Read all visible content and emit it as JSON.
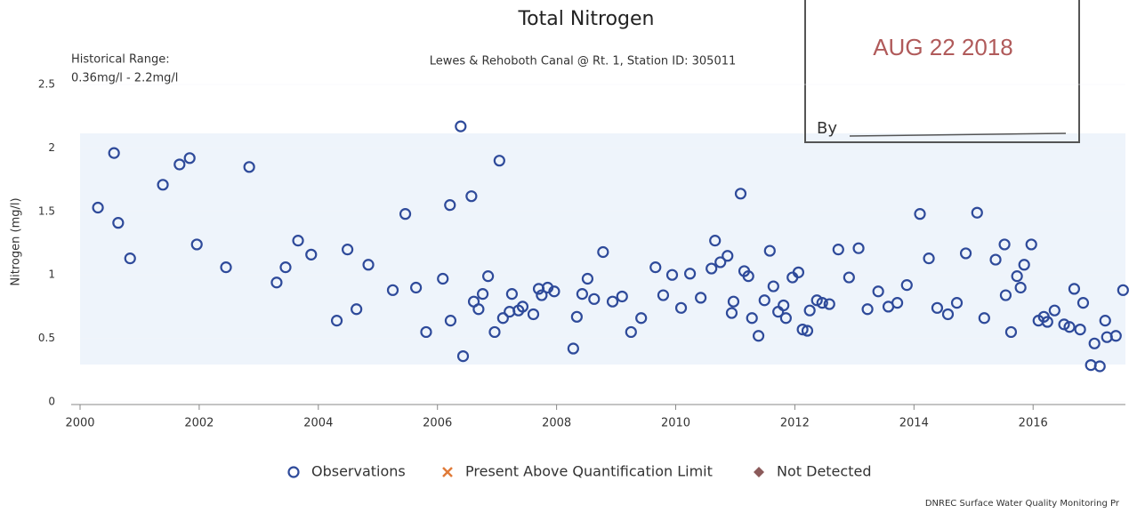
{
  "chart_data": {
    "type": "scatter",
    "title": "Total Nitrogen",
    "subtitle": "Lewes & Rehoboth Canal @ Rt. 1, Station ID: 305011",
    "annotations": [
      "Historical Range:",
      "0.36mg/l - 2.2mg/l"
    ],
    "ylabel": "Nitrogen (mg/l)",
    "footer": "DNREC Surface Water Quality Monitoring Pr",
    "stamp": [
      "AUG 22 2018",
      "By"
    ],
    "xlim": [
      2000,
      2017.55
    ],
    "xticks": [
      2000,
      2002,
      2004,
      2006,
      2008,
      2010,
      2012,
      2014,
      2016
    ],
    "ylim": [
      0,
      2.5
    ],
    "yticks": [
      0,
      0.5,
      1,
      1.5,
      2,
      2.5
    ],
    "legend": "bottom",
    "series": [
      {
        "name": "Observations",
        "color": "#2e4a9a",
        "marker": "circle",
        "x": [
          2000.3,
          2000.57,
          2000.64,
          2000.84,
          2001.39,
          2001.67,
          2001.84,
          2001.96,
          2002.45,
          2002.84,
          2003.3,
          2003.45,
          2003.66,
          2003.88,
          2004.31,
          2004.49,
          2004.64,
          2004.84,
          2005.25,
          2005.46,
          2005.64,
          2005.81,
          2006.09,
          2006.21,
          2006.22,
          2006.39,
          2006.43,
          2006.57,
          2006.61,
          2006.69,
          2006.76,
          2006.85,
          2006.96,
          2007.04,
          2007.1,
          2007.21,
          2007.25,
          2007.36,
          2007.43,
          2007.61,
          2007.7,
          2007.75,
          2007.85,
          2007.96,
          2008.28,
          2008.34,
          2008.43,
          2008.52,
          2008.63,
          2008.78,
          2008.94,
          2009.1,
          2009.25,
          2009.42,
          2009.66,
          2009.79,
          2009.94,
          2010.09,
          2010.24,
          2010.42,
          2010.6,
          2010.66,
          2010.75,
          2010.87,
          2010.94,
          2010.97,
          2011.09,
          2011.15,
          2011.22,
          2011.28,
          2011.39,
          2011.49,
          2011.58,
          2011.64,
          2011.72,
          2011.81,
          2011.85,
          2011.96,
          2012.06,
          2012.13,
          2012.21,
          2012.25,
          2012.37,
          2012.46,
          2012.58,
          2012.73,
          2012.91,
          2013.07,
          2013.22,
          2013.4,
          2013.57,
          2013.72,
          2013.88,
          2014.1,
          2014.25,
          2014.39,
          2014.57,
          2014.72,
          2014.87,
          2015.06,
          2015.18,
          2015.37,
          2015.52,
          2015.54,
          2015.63,
          2015.73,
          2015.79,
          2015.85,
          2015.97,
          2016.09,
          2016.18,
          2016.24,
          2016.36,
          2016.52,
          2016.61,
          2016.69,
          2016.79,
          2016.84,
          2016.97,
          2017.03,
          2017.12,
          2017.21,
          2017.24,
          2017.39,
          2017.51
        ],
        "values": [
          1.53,
          1.96,
          1.41,
          1.13,
          1.71,
          1.87,
          1.92,
          1.24,
          1.06,
          1.85,
          0.94,
          1.06,
          1.27,
          1.16,
          0.64,
          1.2,
          0.73,
          1.08,
          0.88,
          1.48,
          0.9,
          0.55,
          0.97,
          1.55,
          0.64,
          2.17,
          0.36,
          1.62,
          0.79,
          0.73,
          0.85,
          0.99,
          0.55,
          1.9,
          0.66,
          0.71,
          0.85,
          0.72,
          0.75,
          0.69,
          0.89,
          0.84,
          0.9,
          0.87,
          0.42,
          0.67,
          0.85,
          0.97,
          0.81,
          1.18,
          0.79,
          0.83,
          0.55,
          0.66,
          1.06,
          0.84,
          1.0,
          0.74,
          1.01,
          0.82,
          1.05,
          1.27,
          1.1,
          1.15,
          0.7,
          0.79,
          1.64,
          1.03,
          0.99,
          0.66,
          0.52,
          0.8,
          1.19,
          0.91,
          0.71,
          0.76,
          0.66,
          0.98,
          1.02,
          0.57,
          0.56,
          0.72,
          0.8,
          0.78,
          0.77,
          1.2,
          0.98,
          1.21,
          0.73,
          0.87,
          0.75,
          0.78,
          0.92,
          1.48,
          1.13,
          0.74,
          0.69,
          0.78,
          1.17,
          1.49,
          0.66,
          1.12,
          1.24,
          0.84,
          0.55,
          0.99,
          0.9,
          1.08,
          1.24,
          0.64,
          0.67,
          0.63,
          0.72,
          0.61,
          0.59,
          0.89,
          0.57,
          0.78,
          0.29,
          0.46,
          0.28,
          0.64,
          0.51,
          0.52,
          0.88
        ]
      },
      {
        "name": "Present Above Quantification Limit",
        "color": "#e07b39",
        "marker": "cross",
        "x": [],
        "values": []
      },
      {
        "name": "Not Detected",
        "color": "#8b5a5a",
        "marker": "diamond",
        "x": [],
        "values": []
      }
    ]
  }
}
